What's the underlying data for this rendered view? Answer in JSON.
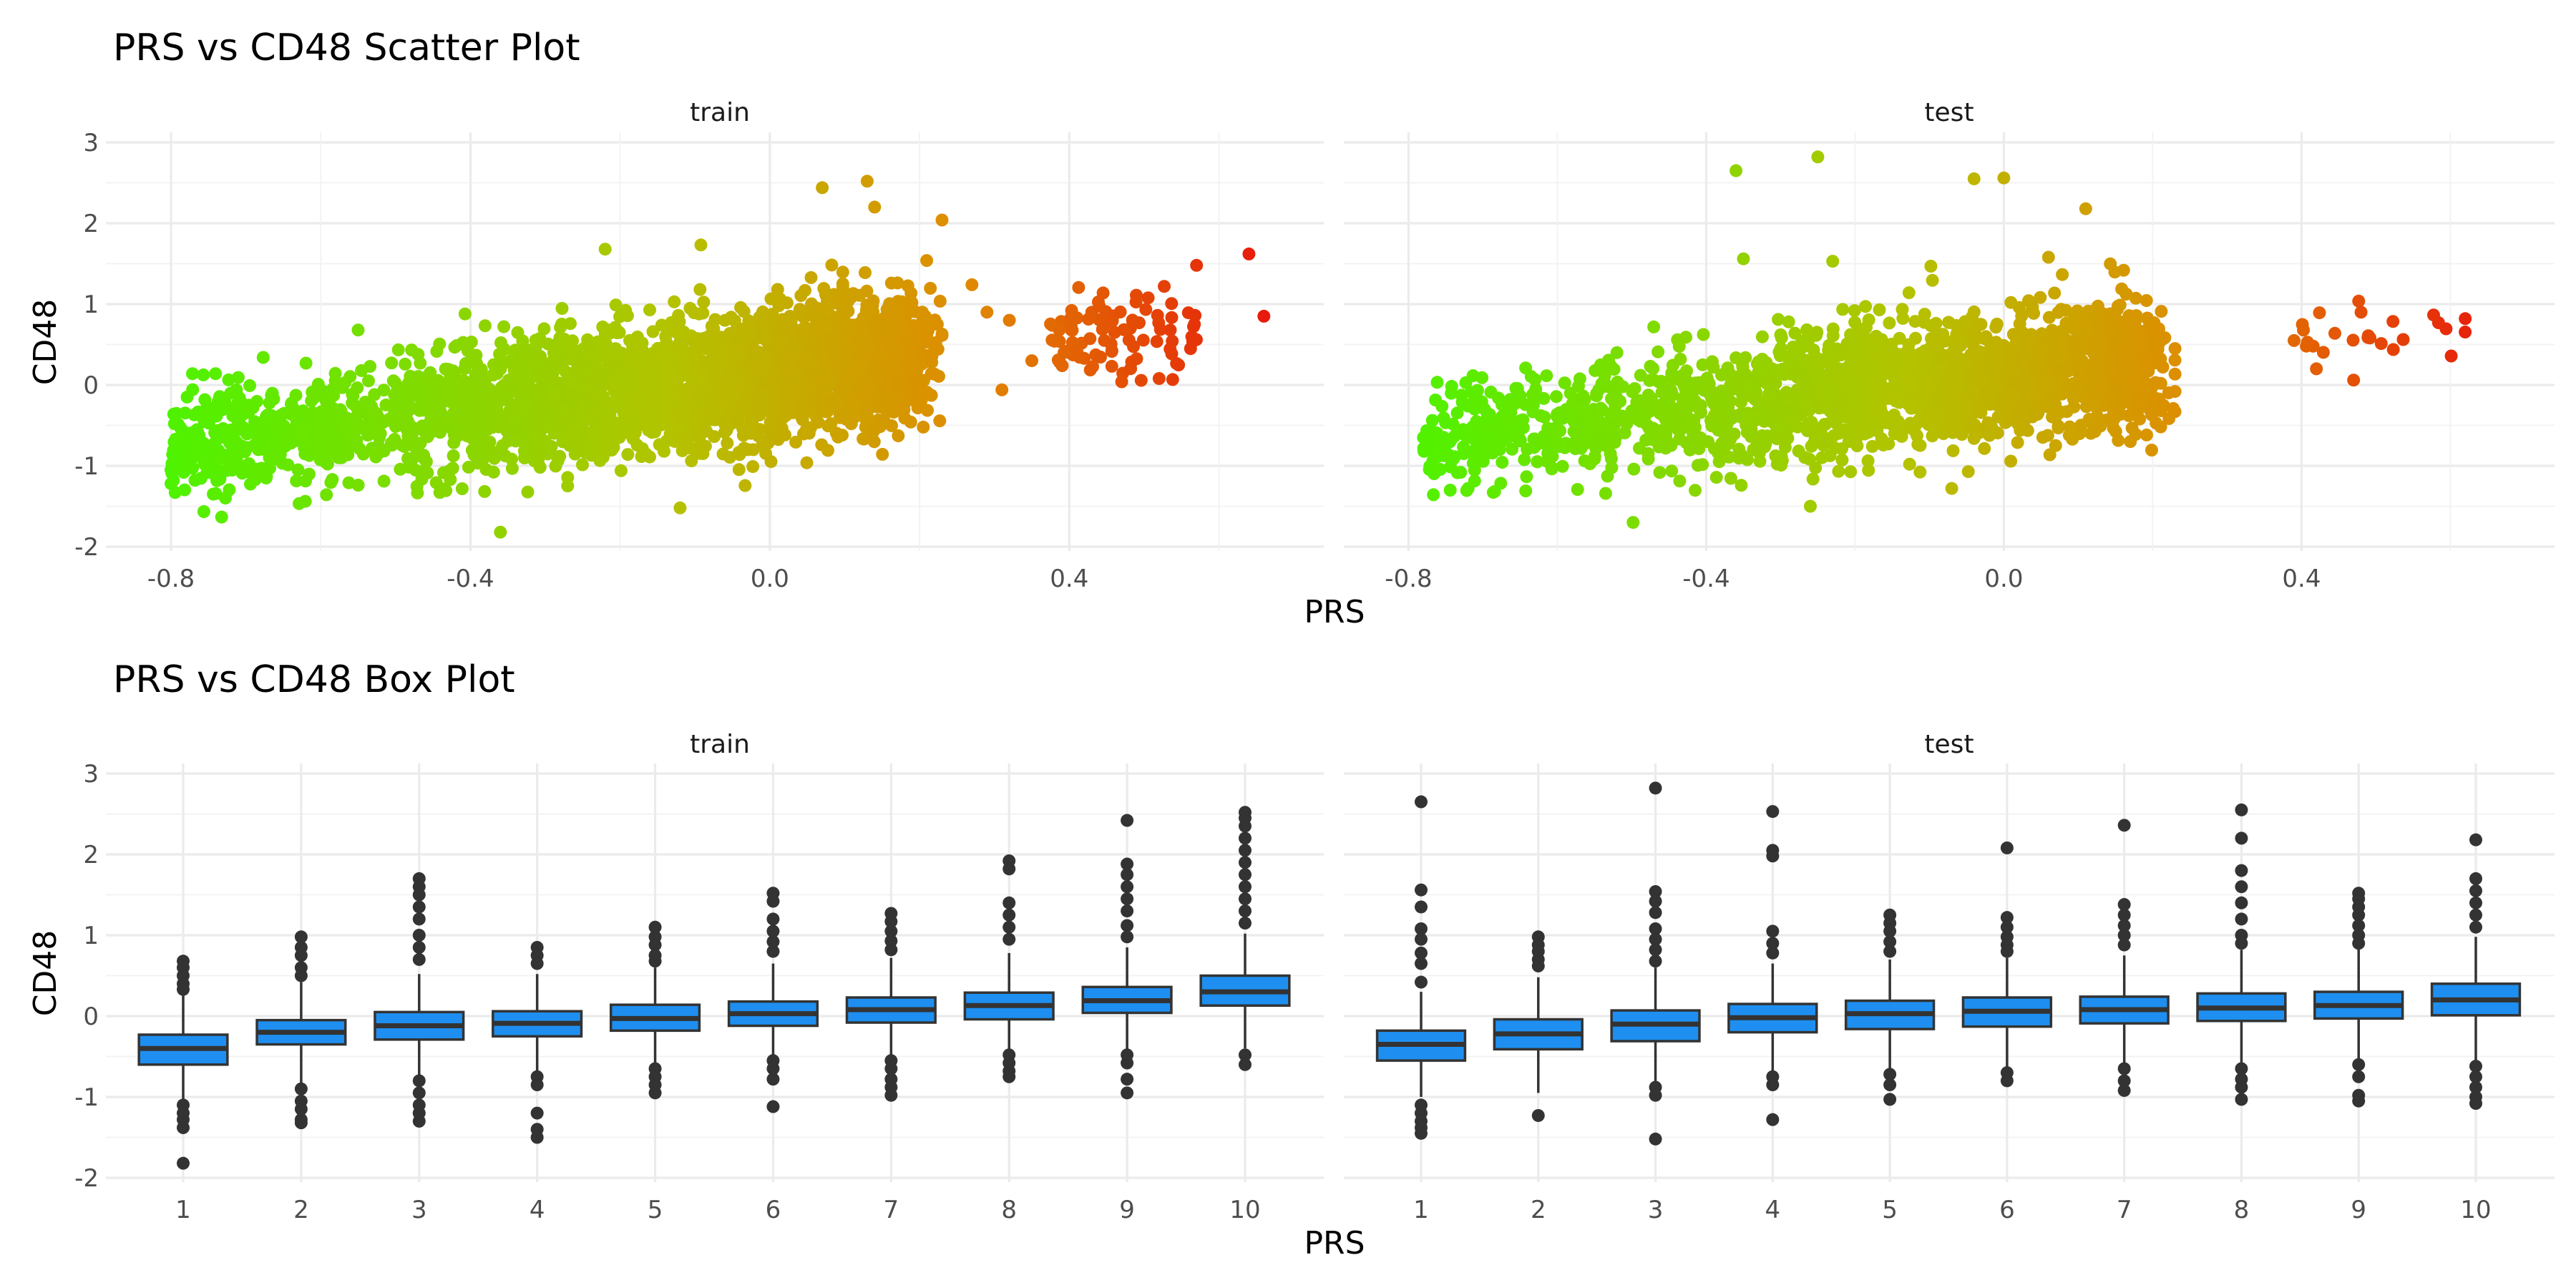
{
  "figure": {
    "scatter_title": "PRS vs CD48 Scatter Plot",
    "box_title": "PRS vs CD48 Box Plot",
    "panels": [
      "train",
      "test"
    ],
    "xlabel": "PRS",
    "ylabel": "CD48"
  },
  "colors": {
    "low": "#4ff200",
    "mid": "#b3c300",
    "high_mid": "#e08a00",
    "high": "#e8140c",
    "box_fill": "#1e8ff0",
    "box_line": "#333333",
    "outlier": "#333333"
  },
  "chart_data": [
    {
      "type": "scatter",
      "title": "PRS vs CD48 Scatter Plot",
      "xlabel": "PRS",
      "ylabel": "CD48",
      "xlim": [
        -0.88,
        0.74
      ],
      "ylim": [
        -2.1,
        3.0
      ],
      "xticks": [
        "-0.8",
        "-0.4",
        "0.0",
        "0.4"
      ],
      "yticks": [
        "-2",
        "-1",
        "0",
        "1",
        "2",
        "3"
      ],
      "color_scale": "PRS (green low to red high)",
      "facets": [
        {
          "name": "train",
          "clusters": [
            {
              "x_range": [
                -0.8,
                -0.52
              ],
              "center_slope": 1.1,
              "spread": 0.3,
              "note": "low PRS group"
            },
            {
              "x_range": [
                -0.52,
                0.2
              ],
              "center_slope": 1.1,
              "spread": 0.4,
              "note": "main body"
            },
            {
              "x_range": [
                0.37,
                0.57
              ],
              "center": 0.6,
              "spread": 0.25,
              "note": "high PRS group"
            }
          ],
          "notable_points": [
            {
              "x": -0.8,
              "y": -1.05
            },
            {
              "x": -0.8,
              "y": -1.22
            },
            {
              "x": -0.36,
              "y": -1.82
            },
            {
              "x": 0.07,
              "y": 2.44
            },
            {
              "x": 0.13,
              "y": 2.52
            },
            {
              "x": 0.14,
              "y": 2.2
            },
            {
              "x": -0.55,
              "y": 0.68
            },
            {
              "x": -0.22,
              "y": 1.68
            },
            {
              "x": -0.12,
              "y": -1.52
            },
            {
              "x": 0.23,
              "y": 2.04
            },
            {
              "x": 0.27,
              "y": 1.24
            },
            {
              "x": 0.29,
              "y": 0.9
            },
            {
              "x": 0.32,
              "y": 0.8
            },
            {
              "x": 0.31,
              "y": -0.06
            },
            {
              "x": 0.35,
              "y": 0.3
            },
            {
              "x": 0.64,
              "y": 1.62
            },
            {
              "x": 0.66,
              "y": 0.85
            },
            {
              "x": 0.57,
              "y": 1.48
            },
            {
              "x": 0.52,
              "y": 0.08
            },
            {
              "x": 0.47,
              "y": 0.04
            }
          ]
        },
        {
          "name": "test",
          "clusters": [
            {
              "x_range": [
                -0.78,
                -0.52
              ],
              "center_slope": 1.0,
              "spread": 0.3,
              "note": "low PRS group"
            },
            {
              "x_range": [
                -0.52,
                0.2
              ],
              "center_slope": 1.0,
              "spread": 0.38,
              "note": "main body"
            },
            {
              "x_range": [
                0.38,
                0.62
              ],
              "center": 0.62,
              "spread": 0.18,
              "note": "high PRS group"
            }
          ],
          "notable_points": [
            {
              "x": -0.78,
              "y": -0.65
            },
            {
              "x": -0.72,
              "y": -1.28
            },
            {
              "x": -0.36,
              "y": 2.65
            },
            {
              "x": -0.25,
              "y": 2.82
            },
            {
              "x": -0.04,
              "y": 2.55
            },
            {
              "x": 0.0,
              "y": 2.56
            },
            {
              "x": -0.35,
              "y": 1.56
            },
            {
              "x": -0.23,
              "y": 1.53
            },
            {
              "x": -0.26,
              "y": -1.5
            },
            {
              "x": -0.07,
              "y": -1.28
            },
            {
              "x": 0.06,
              "y": 1.58
            },
            {
              "x": 0.11,
              "y": 2.18
            },
            {
              "x": -0.52,
              "y": 0.4
            },
            {
              "x": 0.23,
              "y": -0.33
            },
            {
              "x": 0.17,
              "y": -0.7
            },
            {
              "x": 0.62,
              "y": 0.82
            },
            {
              "x": 0.48,
              "y": 0.9
            },
            {
              "x": 0.47,
              "y": 0.06
            },
            {
              "x": 0.42,
              "y": 0.2
            },
            {
              "x": 0.39,
              "y": 0.55
            }
          ]
        }
      ]
    },
    {
      "type": "box",
      "title": "PRS vs CD48 Box Plot",
      "xlabel": "PRS",
      "ylabel": "CD48",
      "categories": [
        "1",
        "2",
        "3",
        "4",
        "5",
        "6",
        "7",
        "8",
        "9",
        "10"
      ],
      "ylim": [
        -2.1,
        3.0
      ],
      "yticks": [
        "-2",
        "-1",
        "0",
        "1",
        "2",
        "3"
      ],
      "facets": [
        {
          "name": "train",
          "boxes": [
            {
              "q1": -0.6,
              "median": -0.4,
              "q3": -0.23,
              "lower": -1.05,
              "upper": 0.28,
              "outliers": [
                0.68,
                0.6,
                0.5,
                0.4,
                0.33,
                -1.1,
                -1.2,
                -1.28,
                -1.38,
                -1.82
              ]
            },
            {
              "q1": -0.35,
              "median": -0.2,
              "q3": -0.05,
              "lower": -0.85,
              "upper": 0.42,
              "outliers": [
                0.98,
                0.85,
                0.75,
                0.6,
                0.5,
                -0.9,
                -1.05,
                -1.15,
                -1.28,
                -1.32
              ]
            },
            {
              "q1": -0.29,
              "median": -0.12,
              "q3": 0.05,
              "lower": -0.75,
              "upper": 0.52,
              "outliers": [
                1.7,
                1.6,
                1.5,
                1.35,
                1.2,
                1.0,
                0.85,
                0.7,
                -0.8,
                -0.95,
                -1.1,
                -1.2,
                -1.3
              ]
            },
            {
              "q1": -0.25,
              "median": -0.09,
              "q3": 0.06,
              "lower": -0.7,
              "upper": 0.52,
              "outliers": [
                0.85,
                0.75,
                0.65,
                -0.75,
                -0.85,
                -1.2,
                -1.4,
                -1.5
              ]
            },
            {
              "q1": -0.18,
              "median": -0.03,
              "q3": 0.14,
              "lower": -0.62,
              "upper": 0.6,
              "outliers": [
                1.1,
                0.98,
                0.88,
                0.75,
                0.68,
                -0.65,
                -0.75,
                -0.85,
                -0.95
              ]
            },
            {
              "q1": -0.12,
              "median": 0.03,
              "q3": 0.18,
              "lower": -0.55,
              "upper": 0.65,
              "outliers": [
                1.52,
                1.42,
                1.2,
                1.05,
                0.92,
                0.8,
                -0.55,
                -0.65,
                -0.78,
                -1.12
              ]
            },
            {
              "q1": -0.08,
              "median": 0.08,
              "q3": 0.23,
              "lower": -0.5,
              "upper": 0.72,
              "outliers": [
                1.27,
                1.17,
                1.05,
                0.93,
                0.82,
                -0.55,
                -0.65,
                -0.78,
                -0.88,
                -0.98
              ]
            },
            {
              "q1": -0.04,
              "median": 0.13,
              "q3": 0.29,
              "lower": -0.45,
              "upper": 0.78,
              "outliers": [
                1.92,
                1.82,
                1.4,
                1.25,
                1.1,
                0.95,
                -0.48,
                -0.58,
                -0.68,
                -0.75
              ]
            },
            {
              "q1": 0.04,
              "median": 0.19,
              "q3": 0.36,
              "lower": -0.42,
              "upper": 0.85,
              "outliers": [
                2.42,
                1.88,
                1.75,
                1.6,
                1.45,
                1.3,
                1.12,
                0.98,
                -0.48,
                -0.58,
                -0.78,
                -0.95
              ]
            },
            {
              "q1": 0.13,
              "median": 0.3,
              "q3": 0.5,
              "lower": -0.4,
              "upper": 1.02,
              "outliers": [
                2.52,
                2.45,
                2.35,
                2.2,
                2.05,
                1.9,
                1.75,
                1.6,
                1.45,
                1.3,
                1.15,
                -0.48,
                -0.6
              ]
            }
          ]
        },
        {
          "name": "test",
          "boxes": [
            {
              "q1": -0.55,
              "median": -0.35,
              "q3": -0.18,
              "lower": -1.0,
              "upper": 0.3,
              "outliers": [
                2.65,
                1.56,
                1.35,
                1.08,
                0.95,
                0.78,
                0.65,
                0.42,
                -1.1,
                -1.2,
                -1.3,
                -1.38,
                -1.45
              ]
            },
            {
              "q1": -0.41,
              "median": -0.22,
              "q3": -0.04,
              "lower": -0.95,
              "upper": 0.48,
              "outliers": [
                0.98,
                0.88,
                0.8,
                0.7,
                0.62,
                -1.23
              ]
            },
            {
              "q1": -0.31,
              "median": -0.1,
              "q3": 0.07,
              "lower": -0.85,
              "upper": 0.6,
              "outliers": [
                2.82,
                1.54,
                1.42,
                1.28,
                1.08,
                0.95,
                0.82,
                0.68,
                -0.88,
                -0.98,
                -1.52
              ]
            },
            {
              "q1": -0.2,
              "median": -0.02,
              "q3": 0.15,
              "lower": -0.72,
              "upper": 0.65,
              "outliers": [
                2.53,
                2.05,
                1.98,
                1.05,
                0.9,
                0.78,
                -0.75,
                -0.85,
                -1.28
              ]
            },
            {
              "q1": -0.16,
              "median": 0.03,
              "q3": 0.19,
              "lower": -0.68,
              "upper": 0.7,
              "outliers": [
                1.25,
                1.15,
                1.05,
                0.92,
                0.8,
                -0.72,
                -0.85,
                -1.03
              ]
            },
            {
              "q1": -0.13,
              "median": 0.06,
              "q3": 0.23,
              "lower": -0.65,
              "upper": 0.72,
              "outliers": [
                2.08,
                1.22,
                1.1,
                0.98,
                0.88,
                0.8,
                -0.7,
                -0.8
              ]
            },
            {
              "q1": -0.09,
              "median": 0.08,
              "q3": 0.24,
              "lower": -0.62,
              "upper": 0.75,
              "outliers": [
                2.36,
                1.38,
                1.25,
                1.12,
                1.0,
                0.88,
                -0.65,
                -0.8,
                -0.92
              ]
            },
            {
              "q1": -0.06,
              "median": 0.1,
              "q3": 0.28,
              "lower": -0.6,
              "upper": 0.82,
              "outliers": [
                2.55,
                2.2,
                1.8,
                1.6,
                1.4,
                1.2,
                1.0,
                0.9,
                -0.65,
                -0.78,
                -0.88,
                -1.03
              ]
            },
            {
              "q1": -0.03,
              "median": 0.13,
              "q3": 0.3,
              "lower": -0.55,
              "upper": 0.85,
              "outliers": [
                1.52,
                1.45,
                1.35,
                1.25,
                1.12,
                1.0,
                0.9,
                -0.6,
                -0.75,
                -0.98,
                -1.05
              ]
            },
            {
              "q1": 0.01,
              "median": 0.2,
              "q3": 0.4,
              "lower": -0.55,
              "upper": 0.98,
              "outliers": [
                2.18,
                1.7,
                1.55,
                1.4,
                1.25,
                1.1,
                -0.62,
                -0.75,
                -0.88,
                -1.0,
                -1.08
              ]
            }
          ]
        }
      ]
    }
  ]
}
